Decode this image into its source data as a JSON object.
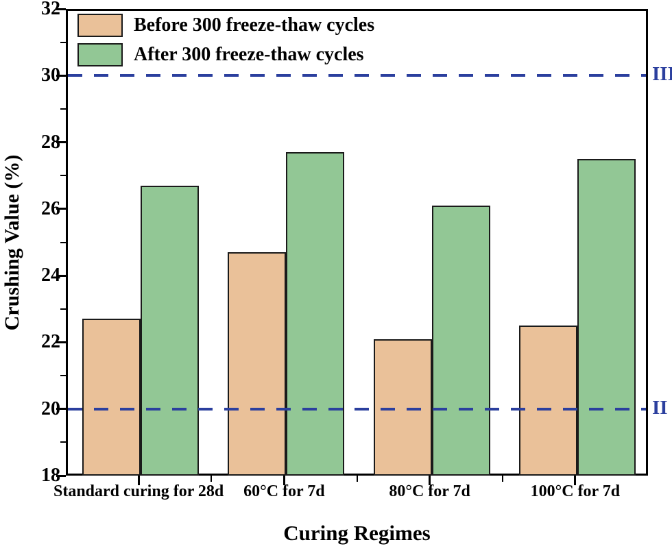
{
  "figure": {
    "background": "#ffffff",
    "axis_color": "#000000",
    "text_color": "#000000"
  },
  "chart_data": {
    "type": "bar",
    "title": "",
    "xlabel": "Curing Regimes",
    "ylabel": "Crushing Value (%)",
    "ylim": [
      18,
      32
    ],
    "yticks": [
      18,
      20,
      22,
      24,
      26,
      28,
      30,
      32
    ],
    "yminor_step": 1,
    "grid": false,
    "categories": [
      "Standard curing for 28d",
      "60°C for 7d",
      "80°C for 7d",
      "100°C for 7d"
    ],
    "series": [
      {
        "name": "Before 300 freeze-thaw cycles",
        "color": "#EAC199",
        "edge_color": "#1a1a1a",
        "values": [
          22.7,
          24.7,
          22.1,
          22.5
        ]
      },
      {
        "name": "After 300 freeze-thaw cycles",
        "color": "#92C795",
        "edge_color": "#1a1a1a",
        "values": [
          26.7,
          27.7,
          26.1,
          27.5
        ]
      }
    ],
    "reference_lines": [
      {
        "value": 30,
        "label": "III",
        "color": "#2B3F9E",
        "style": "dashed"
      },
      {
        "value": 20,
        "label": "II",
        "color": "#2B3F9E",
        "style": "dashed"
      }
    ],
    "legend": {
      "position": "top-left",
      "entries": [
        "Before 300 freeze-thaw cycles",
        "After 300 freeze-thaw cycles"
      ]
    }
  }
}
